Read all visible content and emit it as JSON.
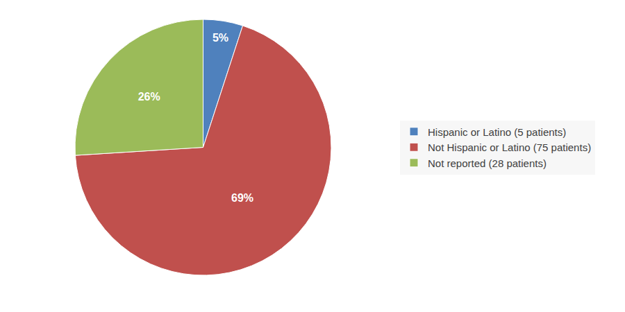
{
  "chart_data": {
    "type": "pie",
    "categories": [
      "Hispanic or Latino (5 patients)",
      "Not Hispanic or Latino (75 patients)",
      "Not reported (28 patients)"
    ],
    "values": [
      5,
      69,
      26
    ],
    "value_labels": [
      "5%",
      "69%",
      "26%"
    ],
    "colors": [
      "#4f81bd",
      "#c0504d",
      "#9bbb59"
    ],
    "data_labels": true,
    "legend": "right"
  }
}
